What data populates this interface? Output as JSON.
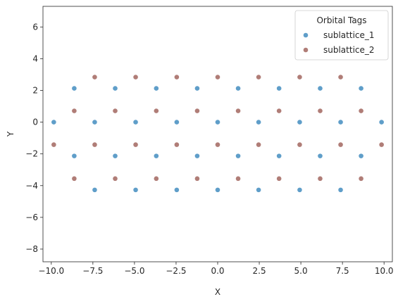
{
  "chart_data": {
    "type": "scatter",
    "xlabel": "X",
    "ylabel": "Y",
    "xlim": [
      -10.5,
      10.5
    ],
    "ylim": [
      -8.8,
      7.3
    ],
    "xticks": [
      -10.0,
      -7.5,
      -5.0,
      -2.5,
      0.0,
      2.5,
      5.0,
      7.5,
      10.0
    ],
    "xtick_labels": [
      "−10.0",
      "−7.5",
      "−5.0",
      "−2.5",
      "0.0",
      "2.5",
      "5.0",
      "7.5",
      "10.0"
    ],
    "yticks": [
      -8,
      -6,
      -4,
      -2,
      0,
      2,
      4,
      6
    ],
    "ytick_labels": [
      "−8",
      "−6",
      "−4",
      "−2",
      "0",
      "2",
      "4",
      "6"
    ],
    "grid": false,
    "legend": {
      "title": "Orbital Tags",
      "placement": "top-right"
    },
    "series": [
      {
        "name": "sublattice_1",
        "color": "#5f9ec9",
        "points": [
          [
            -9.85,
            0.0
          ],
          [
            -8.62,
            2.13
          ],
          [
            -8.62,
            -2.13
          ],
          [
            -7.39,
            0.0
          ],
          [
            -7.39,
            -4.27
          ],
          [
            -6.16,
            2.13
          ],
          [
            -6.16,
            -2.13
          ],
          [
            -4.93,
            0.0
          ],
          [
            -4.93,
            -4.27
          ],
          [
            -3.69,
            2.13
          ],
          [
            -3.69,
            -2.13
          ],
          [
            -2.46,
            0.0
          ],
          [
            -2.46,
            -4.27
          ],
          [
            -1.23,
            2.13
          ],
          [
            -1.23,
            -2.13
          ],
          [
            0.0,
            0.0
          ],
          [
            0.0,
            -4.27
          ],
          [
            1.23,
            2.13
          ],
          [
            1.23,
            -2.13
          ],
          [
            2.46,
            0.0
          ],
          [
            2.46,
            -4.27
          ],
          [
            3.69,
            2.13
          ],
          [
            3.69,
            -2.13
          ],
          [
            4.93,
            0.0
          ],
          [
            4.93,
            -4.27
          ],
          [
            6.16,
            2.13
          ],
          [
            6.16,
            -2.13
          ],
          [
            7.39,
            0.0
          ],
          [
            7.39,
            -4.27
          ],
          [
            8.62,
            2.13
          ],
          [
            8.62,
            -2.13
          ],
          [
            9.85,
            0.0
          ]
        ]
      },
      {
        "name": "sublattice_2",
        "color": "#b07d77",
        "points": [
          [
            -9.85,
            -1.42
          ],
          [
            -8.62,
            0.71
          ],
          [
            -8.62,
            -3.56
          ],
          [
            -7.39,
            2.84
          ],
          [
            -7.39,
            -1.42
          ],
          [
            -6.16,
            0.71
          ],
          [
            -6.16,
            -3.56
          ],
          [
            -4.93,
            2.84
          ],
          [
            -4.93,
            -1.42
          ],
          [
            -3.69,
            0.71
          ],
          [
            -3.69,
            -3.56
          ],
          [
            -2.46,
            2.84
          ],
          [
            -2.46,
            -1.42
          ],
          [
            -1.23,
            0.71
          ],
          [
            -1.23,
            -3.56
          ],
          [
            0.0,
            2.84
          ],
          [
            0.0,
            -1.42
          ],
          [
            1.23,
            0.71
          ],
          [
            1.23,
            -3.56
          ],
          [
            2.46,
            2.84
          ],
          [
            2.46,
            -1.42
          ],
          [
            3.69,
            0.71
          ],
          [
            3.69,
            -3.56
          ],
          [
            4.93,
            2.84
          ],
          [
            4.93,
            -1.42
          ],
          [
            6.16,
            0.71
          ],
          [
            6.16,
            -3.56
          ],
          [
            7.39,
            2.84
          ],
          [
            7.39,
            -1.42
          ],
          [
            8.62,
            0.71
          ],
          [
            8.62,
            -3.56
          ],
          [
            9.85,
            -1.42
          ]
        ]
      }
    ]
  }
}
